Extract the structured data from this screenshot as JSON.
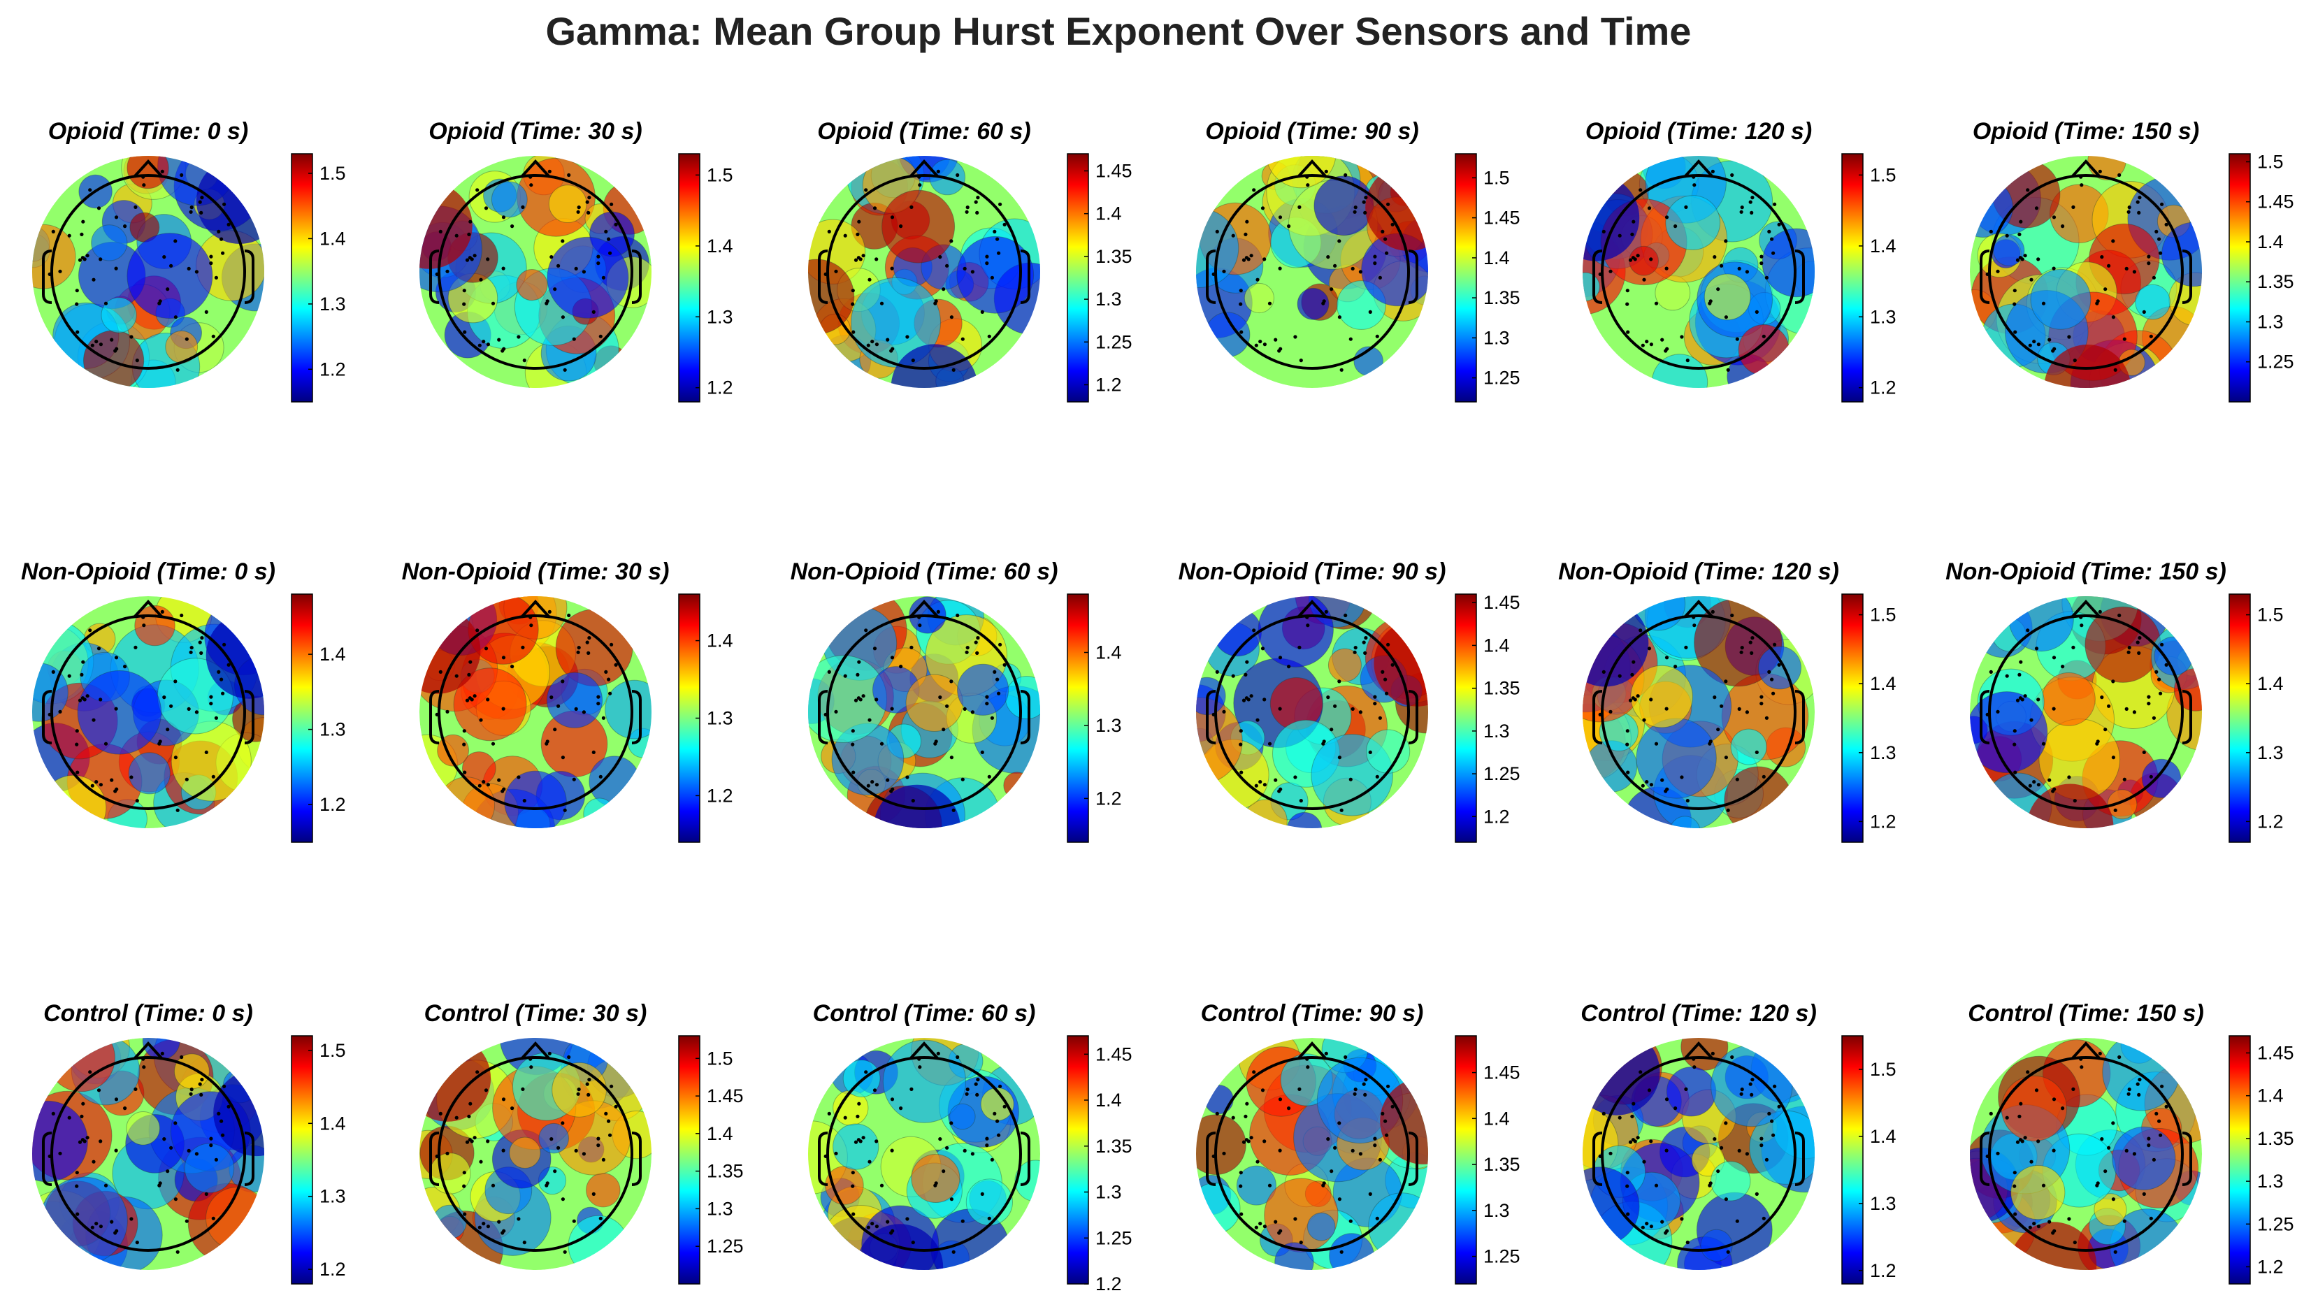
{
  "title": "Gamma: Mean Group Hurst Exponent Over Sensors and Time",
  "chart_data": {
    "type": "heatmap",
    "subtype": "eeg-topographic-map-grid",
    "title": "Gamma: Mean Group Hurst Exponent Over Sensors and Time",
    "colormap": "jet",
    "colormap_stops": [
      "#00007f",
      "#0000ff",
      "#007fff",
      "#00ffff",
      "#7fff7f",
      "#ffff00",
      "#ff7f00",
      "#ff0000",
      "#7f0000"
    ],
    "groups": [
      "Opioid",
      "Non-Opioid",
      "Control"
    ],
    "times_s": [
      0,
      30,
      60,
      90,
      120,
      150
    ],
    "panels": [
      {
        "group": "Opioid",
        "time": 0,
        "label": "Opioid (Time: 0 s)",
        "clim": [
          1.15,
          1.53
        ],
        "ticks": [
          "1.2",
          "1.3",
          "1.4",
          "1.5"
        ]
      },
      {
        "group": "Opioid",
        "time": 30,
        "label": "Opioid (Time: 30 s)",
        "clim": [
          1.18,
          1.53
        ],
        "ticks": [
          "1.2",
          "1.3",
          "1.4",
          "1.5"
        ]
      },
      {
        "group": "Opioid",
        "time": 60,
        "label": "Opioid (Time: 60 s)",
        "clim": [
          1.18,
          1.47
        ],
        "ticks": [
          "1.2",
          "1.25",
          "1.3",
          "1.35",
          "1.4",
          "1.45"
        ]
      },
      {
        "group": "Opioid",
        "time": 90,
        "label": "Opioid (Time: 90 s)",
        "clim": [
          1.22,
          1.53
        ],
        "ticks": [
          "1.25",
          "1.3",
          "1.35",
          "1.4",
          "1.45",
          "1.5"
        ]
      },
      {
        "group": "Opioid",
        "time": 120,
        "label": "Opioid (Time: 120 s)",
        "clim": [
          1.18,
          1.53
        ],
        "ticks": [
          "1.2",
          "1.3",
          "1.4",
          "1.5"
        ]
      },
      {
        "group": "Opioid",
        "time": 150,
        "label": "Opioid (Time: 150 s)",
        "clim": [
          1.2,
          1.51
        ],
        "ticks": [
          "1.25",
          "1.3",
          "1.35",
          "1.4",
          "1.45",
          "1.5"
        ]
      },
      {
        "group": "Non-Opioid",
        "time": 0,
        "label": "Non-Opioid (Time: 0 s)",
        "clim": [
          1.15,
          1.48
        ],
        "ticks": [
          "1.2",
          "1.3",
          "1.4"
        ]
      },
      {
        "group": "Non-Opioid",
        "time": 30,
        "label": "Non-Opioid (Time: 30 s)",
        "clim": [
          1.14,
          1.46
        ],
        "ticks": [
          "1.2",
          "1.3",
          "1.4"
        ]
      },
      {
        "group": "Non-Opioid",
        "time": 60,
        "label": "Non-Opioid (Time: 60 s)",
        "clim": [
          1.14,
          1.48
        ],
        "ticks": [
          "1.2",
          "1.3",
          "1.4"
        ]
      },
      {
        "group": "Non-Opioid",
        "time": 90,
        "label": "Non-Opioid (Time: 90 s)",
        "clim": [
          1.17,
          1.46
        ],
        "ticks": [
          "1.2",
          "1.25",
          "1.3",
          "1.35",
          "1.4",
          "1.45"
        ]
      },
      {
        "group": "Non-Opioid",
        "time": 120,
        "label": "Non-Opioid (Time: 120 s)",
        "clim": [
          1.17,
          1.53
        ],
        "ticks": [
          "1.2",
          "1.3",
          "1.4",
          "1.5"
        ]
      },
      {
        "group": "Non-Opioid",
        "time": 150,
        "label": "Non-Opioid (Time: 150 s)",
        "clim": [
          1.17,
          1.53
        ],
        "ticks": [
          "1.2",
          "1.3",
          "1.4",
          "1.5"
        ]
      },
      {
        "group": "Control",
        "time": 0,
        "label": "Control (Time: 0 s)",
        "clim": [
          1.18,
          1.52
        ],
        "ticks": [
          "1.2",
          "1.3",
          "1.4",
          "1.5"
        ]
      },
      {
        "group": "Control",
        "time": 30,
        "label": "Control (Time: 30 s)",
        "clim": [
          1.2,
          1.53
        ],
        "ticks": [
          "1.25",
          "1.3",
          "1.35",
          "1.4",
          "1.45",
          "1.5"
        ]
      },
      {
        "group": "Control",
        "time": 60,
        "label": "Control (Time: 60 s)",
        "clim": [
          1.2,
          1.47
        ],
        "ticks": [
          "1.2",
          "1.25",
          "1.3",
          "1.35",
          "1.4",
          "1.45"
        ]
      },
      {
        "group": "Control",
        "time": 90,
        "label": "Control (Time: 90 s)",
        "clim": [
          1.22,
          1.49
        ],
        "ticks": [
          "1.25",
          "1.3",
          "1.35",
          "1.4",
          "1.45"
        ]
      },
      {
        "group": "Control",
        "time": 120,
        "label": "Control (Time: 120 s)",
        "clim": [
          1.18,
          1.55
        ],
        "ticks": [
          "1.2",
          "1.3",
          "1.4",
          "1.5"
        ]
      },
      {
        "group": "Control",
        "time": 150,
        "label": "Control (Time: 150 s)",
        "clim": [
          1.18,
          1.47
        ],
        "ticks": [
          "1.2",
          "1.25",
          "1.3",
          "1.35",
          "1.4",
          "1.45"
        ]
      }
    ]
  }
}
